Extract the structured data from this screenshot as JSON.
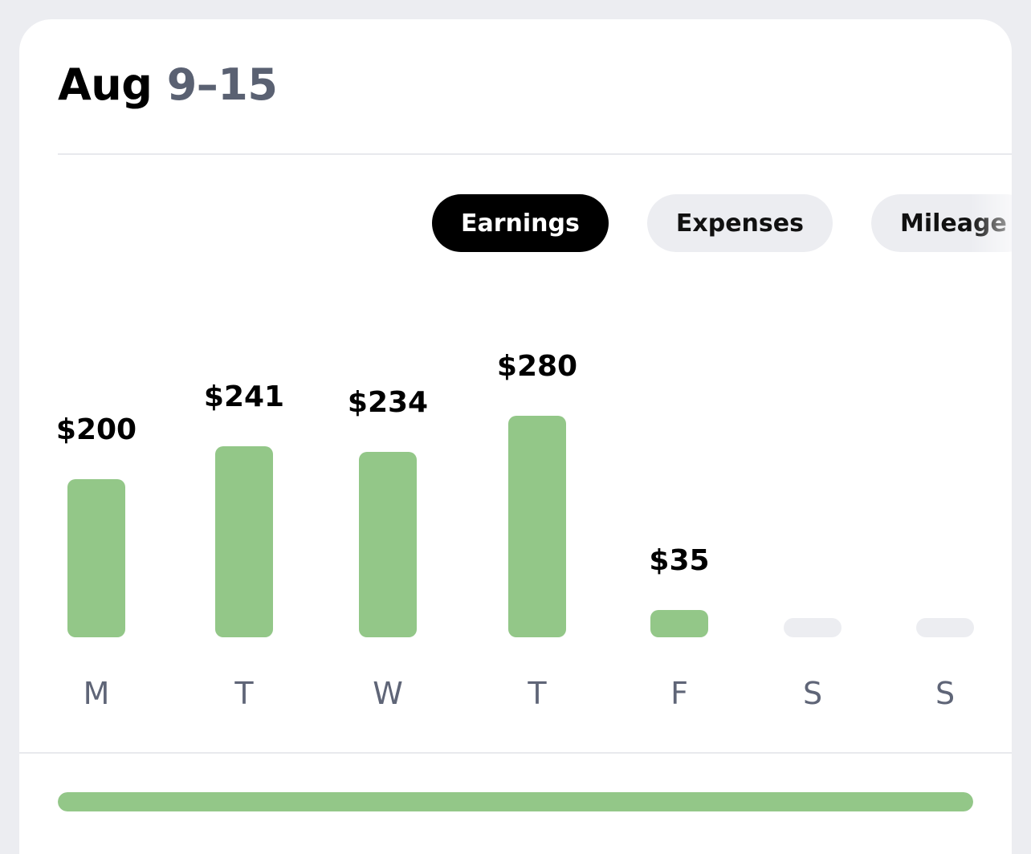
{
  "header": {
    "month": "Aug",
    "range": " 9–15"
  },
  "tabs": [
    {
      "label": "Earnings",
      "active": true
    },
    {
      "label": "Expenses",
      "active": false
    },
    {
      "label": "Mileage",
      "active": false
    }
  ],
  "colors": {
    "bar_active": "#93C788",
    "bar_empty": "#ECEDF1",
    "progress_fill": "#93C788"
  },
  "chart_data": {
    "type": "bar",
    "categories": [
      "M",
      "T",
      "W",
      "T",
      "F",
      "S",
      "S"
    ],
    "values": [
      200,
      241,
      234,
      280,
      35,
      0,
      0
    ],
    "value_labels": [
      "$200",
      "$241",
      "$234",
      "$280",
      "$35",
      "",
      ""
    ],
    "ylim": [
      0,
      280
    ]
  },
  "progress": {
    "fraction": 1.0
  }
}
